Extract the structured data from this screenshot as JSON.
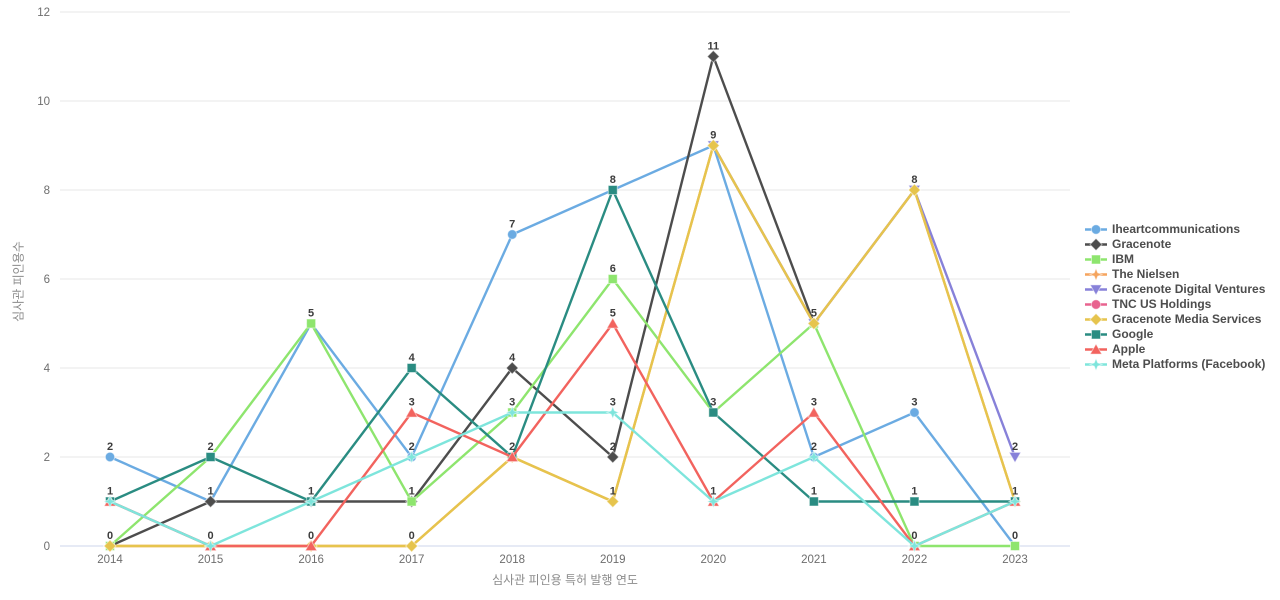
{
  "chart_data": {
    "type": "line",
    "title": "",
    "xlabel": "심사관 피인용 특허 발행 연도",
    "ylabel": "심사관 피인용수",
    "x": [
      2014,
      2015,
      2016,
      2017,
      2018,
      2019,
      2020,
      2021,
      2022,
      2023
    ],
    "ylim": [
      0,
      12
    ],
    "yticks": [
      0,
      2,
      4,
      6,
      8,
      10,
      12
    ],
    "grid": true,
    "legend_position": "right",
    "colors": {
      "axis_line": "#ccd6eb",
      "gridline": "#e7e7e7",
      "tick_text": "#6e6e6e",
      "data_label": "#3c3c3c"
    },
    "series": [
      {
        "name": "Iheartcommunications",
        "color": "#6babe2",
        "marker": "circle",
        "values": [
          2,
          1,
          5,
          2,
          7,
          8,
          9,
          2,
          3,
          0
        ]
      },
      {
        "name": "Gracenote",
        "color": "#4d4d4d",
        "marker": "diamond",
        "values": [
          0,
          1,
          1,
          1,
          4,
          2,
          11,
          5,
          null,
          null
        ]
      },
      {
        "name": "IBM",
        "color": "#8ee56e",
        "marker": "square",
        "values": [
          0,
          2,
          5,
          1,
          3,
          6,
          3,
          5,
          0,
          0
        ]
      },
      {
        "name": "The Nielsen",
        "color": "#f5a45d",
        "marker": "star",
        "values": [
          0,
          0,
          0,
          0,
          2,
          1,
          9,
          5,
          8,
          1
        ]
      },
      {
        "name": "Gracenote Digital Ventures",
        "color": "#8781d9",
        "marker": "triangle-down",
        "values": [
          null,
          null,
          null,
          null,
          null,
          null,
          9,
          5,
          8,
          2
        ]
      },
      {
        "name": "TNC US Holdings",
        "color": "#e8638f",
        "marker": "circle",
        "values": [
          1,
          0,
          null,
          null,
          null,
          null,
          null,
          null,
          null,
          null
        ]
      },
      {
        "name": "Gracenote Media Services",
        "color": "#e6c44d",
        "marker": "diamond",
        "values": [
          0,
          0,
          0,
          0,
          2,
          1,
          9,
          5,
          8,
          1
        ]
      },
      {
        "name": "Google",
        "color": "#2a8c82",
        "marker": "square",
        "values": [
          1,
          2,
          1,
          4,
          2,
          8,
          3,
          1,
          1,
          1
        ]
      },
      {
        "name": "Apple",
        "color": "#f2635e",
        "marker": "triangle-up",
        "values": [
          1,
          0,
          0,
          3,
          2,
          5,
          1,
          3,
          0,
          1
        ]
      },
      {
        "name": "Meta Platforms (Facebook)",
        "color": "#7ee5dc",
        "marker": "star",
        "values": [
          1,
          0,
          1,
          2,
          3,
          3,
          1,
          2,
          0,
          1
        ]
      }
    ]
  }
}
